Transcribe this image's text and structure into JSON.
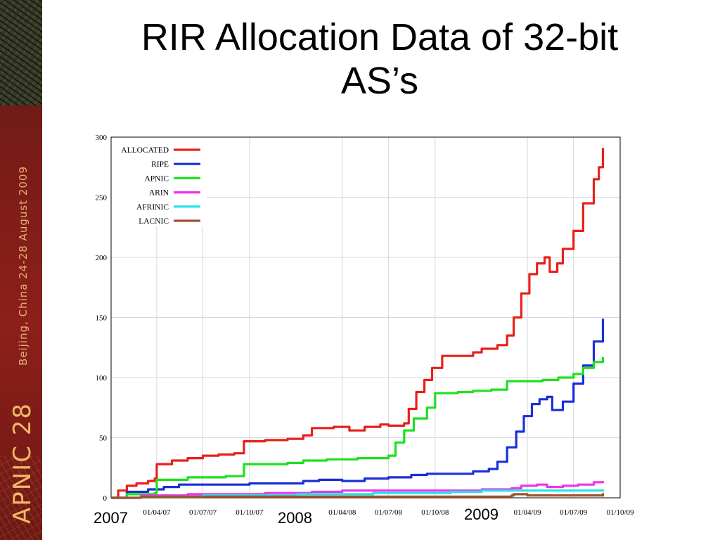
{
  "slide": {
    "title_line1": "RIR Allocation Data of 32-bit",
    "title_line2": "AS’s"
  },
  "sidebar": {
    "event_name": "APNIC 28",
    "event_dates": "Beijing, China  24-28 August 2009"
  },
  "year_labels": [
    "2007",
    "2008",
    "2009"
  ],
  "chart_data": {
    "type": "line",
    "ylim": [
      0,
      300
    ],
    "yticks": [
      0,
      50,
      100,
      150,
      200,
      250,
      300
    ],
    "x_range": [
      "2007-01-01",
      "2009-10-01"
    ],
    "xtick_labels": [
      "01/04/07",
      "01/07/07",
      "01/10/07",
      "01/04/08",
      "01/07/08",
      "01/10/08",
      "01/04/09",
      "01/07/09",
      "01/10/09"
    ],
    "xtick_dates": [
      "2007-04-01",
      "2007-07-01",
      "2007-10-01",
      "2008-04-01",
      "2008-07-01",
      "2008-10-01",
      "2009-04-01",
      "2009-07-01",
      "2009-10-01"
    ],
    "legend_position": "top-left",
    "grid": true,
    "series": [
      {
        "name": "ALLOCATED",
        "color": "#e8201a",
        "points": [
          [
            "2007-01-01",
            0
          ],
          [
            "2007-01-15",
            6
          ],
          [
            "2007-02-01",
            10
          ],
          [
            "2007-02-20",
            12
          ],
          [
            "2007-03-15",
            14
          ],
          [
            "2007-03-28",
            16
          ],
          [
            "2007-04-01",
            28
          ],
          [
            "2007-05-01",
            31
          ],
          [
            "2007-06-01",
            33
          ],
          [
            "2007-07-01",
            35
          ],
          [
            "2007-08-01",
            36
          ],
          [
            "2007-09-01",
            37
          ],
          [
            "2007-09-20",
            47
          ],
          [
            "2007-11-01",
            48
          ],
          [
            "2007-12-15",
            49
          ],
          [
            "2008-01-15",
            52
          ],
          [
            "2008-02-01",
            58
          ],
          [
            "2008-03-15",
            59
          ],
          [
            "2008-04-15",
            56
          ],
          [
            "2008-05-15",
            59
          ],
          [
            "2008-06-15",
            61
          ],
          [
            "2008-07-01",
            60
          ],
          [
            "2008-08-01",
            62
          ],
          [
            "2008-08-10",
            74
          ],
          [
            "2008-08-25",
            88
          ],
          [
            "2008-09-10",
            98
          ],
          [
            "2008-09-25",
            108
          ],
          [
            "2008-10-15",
            118
          ],
          [
            "2008-11-15",
            118
          ],
          [
            "2008-12-15",
            121
          ],
          [
            "2009-01-01",
            124
          ],
          [
            "2009-02-01",
            127
          ],
          [
            "2009-02-20",
            135
          ],
          [
            "2009-03-05",
            150
          ],
          [
            "2009-03-20",
            170
          ],
          [
            "2009-04-05",
            186
          ],
          [
            "2009-04-20",
            195
          ],
          [
            "2009-05-05",
            200
          ],
          [
            "2009-05-15",
            188
          ],
          [
            "2009-05-30",
            195
          ],
          [
            "2009-06-10",
            207
          ],
          [
            "2009-07-01",
            222
          ],
          [
            "2009-07-20",
            245
          ],
          [
            "2009-08-10",
            265
          ],
          [
            "2009-08-20",
            275
          ],
          [
            "2009-08-28",
            291
          ]
        ]
      },
      {
        "name": "RIPE",
        "color": "#1a2fd8",
        "points": [
          [
            "2007-01-01",
            0
          ],
          [
            "2007-02-01",
            5
          ],
          [
            "2007-03-15",
            7
          ],
          [
            "2007-04-15",
            9
          ],
          [
            "2007-05-15",
            11
          ],
          [
            "2007-10-01",
            12
          ],
          [
            "2008-01-15",
            14
          ],
          [
            "2008-02-15",
            15
          ],
          [
            "2008-04-01",
            14
          ],
          [
            "2008-05-15",
            16
          ],
          [
            "2008-07-01",
            17
          ],
          [
            "2008-08-15",
            19
          ],
          [
            "2008-09-15",
            20
          ],
          [
            "2008-12-15",
            22
          ],
          [
            "2009-01-15",
            24
          ],
          [
            "2009-02-01",
            30
          ],
          [
            "2009-02-20",
            42
          ],
          [
            "2009-03-10",
            55
          ],
          [
            "2009-03-25",
            68
          ],
          [
            "2009-04-10",
            78
          ],
          [
            "2009-04-25",
            82
          ],
          [
            "2009-05-10",
            84
          ],
          [
            "2009-05-20",
            73
          ],
          [
            "2009-06-10",
            80
          ],
          [
            "2009-07-01",
            95
          ],
          [
            "2009-07-20",
            110
          ],
          [
            "2009-08-10",
            130
          ],
          [
            "2009-08-28",
            149
          ]
        ]
      },
      {
        "name": "APNIC",
        "color": "#1fe01f",
        "points": [
          [
            "2007-01-01",
            0
          ],
          [
            "2007-02-01",
            3
          ],
          [
            "2007-03-28",
            4
          ],
          [
            "2007-04-01",
            15
          ],
          [
            "2007-06-01",
            17
          ],
          [
            "2007-08-15",
            18
          ],
          [
            "2007-09-20",
            28
          ],
          [
            "2007-12-15",
            29
          ],
          [
            "2008-01-15",
            31
          ],
          [
            "2008-03-01",
            32
          ],
          [
            "2008-05-01",
            33
          ],
          [
            "2008-07-01",
            35
          ],
          [
            "2008-07-15",
            46
          ],
          [
            "2008-08-01",
            56
          ],
          [
            "2008-08-20",
            66
          ],
          [
            "2008-09-15",
            75
          ],
          [
            "2008-10-01",
            87
          ],
          [
            "2008-11-15",
            88
          ],
          [
            "2008-12-15",
            89
          ],
          [
            "2009-01-20",
            90
          ],
          [
            "2009-02-20",
            97
          ],
          [
            "2009-04-01",
            97
          ],
          [
            "2009-05-01",
            98
          ],
          [
            "2009-06-01",
            100
          ],
          [
            "2009-07-01",
            103
          ],
          [
            "2009-07-20",
            108
          ],
          [
            "2009-08-10",
            113
          ],
          [
            "2009-08-28",
            117
          ]
        ]
      },
      {
        "name": "ARIN",
        "color": "#ee33ee",
        "points": [
          [
            "2007-01-01",
            0
          ],
          [
            "2007-03-01",
            2
          ],
          [
            "2007-06-01",
            3
          ],
          [
            "2007-11-01",
            4
          ],
          [
            "2008-02-01",
            5
          ],
          [
            "2008-04-01",
            6
          ],
          [
            "2008-10-01",
            6
          ],
          [
            "2009-01-01",
            7
          ],
          [
            "2009-03-01",
            8
          ],
          [
            "2009-03-20",
            10
          ],
          [
            "2009-04-20",
            11
          ],
          [
            "2009-05-10",
            9
          ],
          [
            "2009-06-10",
            10
          ],
          [
            "2009-07-10",
            11
          ],
          [
            "2009-08-10",
            13
          ],
          [
            "2009-08-28",
            14
          ]
        ]
      },
      {
        "name": "AFRINIC",
        "color": "#22e5e5",
        "points": [
          [
            "2007-01-01",
            0
          ],
          [
            "2007-03-01",
            1
          ],
          [
            "2007-07-01",
            2
          ],
          [
            "2008-01-01",
            3
          ],
          [
            "2008-06-01",
            4
          ],
          [
            "2008-11-01",
            5
          ],
          [
            "2009-01-01",
            6
          ],
          [
            "2009-04-01",
            6
          ],
          [
            "2009-08-28",
            7
          ]
        ]
      },
      {
        "name": "LACNIC",
        "color": "#a0522d",
        "points": [
          [
            "2007-01-01",
            0
          ],
          [
            "2007-03-01",
            1
          ],
          [
            "2008-01-01",
            1
          ],
          [
            "2009-03-01",
            2
          ],
          [
            "2009-03-05",
            3
          ],
          [
            "2009-04-01",
            2
          ],
          [
            "2009-08-25",
            2
          ],
          [
            "2009-08-28",
            4
          ]
        ]
      }
    ]
  }
}
